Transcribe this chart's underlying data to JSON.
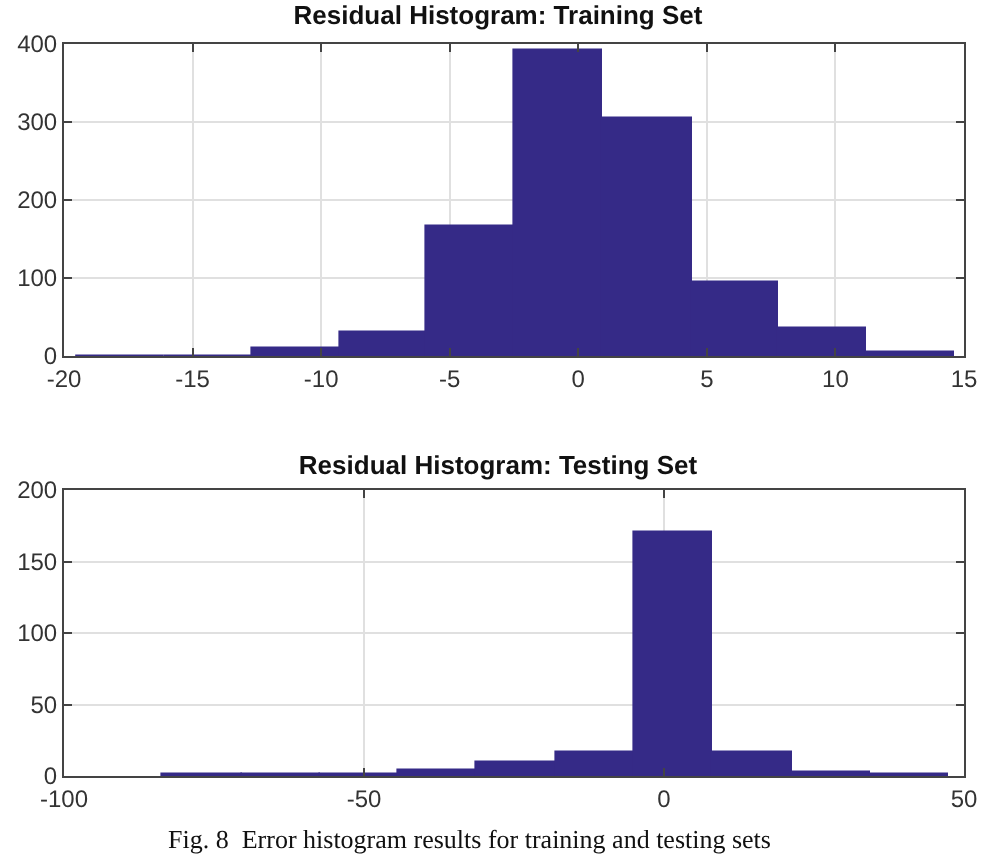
{
  "chart_data": [
    {
      "type": "histogram",
      "title": "Residual Histogram: Training Set",
      "bins": [
        -19.5,
        -16.1,
        -12.7,
        -9.3,
        -5.9,
        -2.5,
        0.9,
        4.4,
        7.8,
        11.2,
        14.6
      ],
      "values": [
        1,
        1,
        10,
        30,
        166,
        393,
        306,
        94,
        36,
        6
      ],
      "color": "#352a87",
      "xlim": [
        -20,
        15
      ],
      "xticks": [
        -20,
        -15,
        -10,
        -5,
        0,
        5,
        10,
        15
      ],
      "ylim": [
        0,
        400
      ],
      "yticks": [
        0,
        100,
        200,
        300,
        400
      ],
      "grid": true
    },
    {
      "type": "histogram",
      "title": "Residual Histogram: Testing Set",
      "bins": [
        -83.6,
        -70.5,
        -57.4,
        -44.3,
        -31.2,
        -18.1,
        -5.0,
        8.1,
        21.2,
        34.3,
        47.4
      ],
      "values": [
        1,
        1,
        1,
        4,
        10,
        17,
        170,
        17,
        3,
        2
      ],
      "color": "#352a87",
      "xlim": [
        -100,
        50
      ],
      "xticks": [
        -100,
        -50,
        0,
        50
      ],
      "ylim": [
        0,
        200
      ],
      "yticks": [
        0,
        50,
        100,
        150,
        200
      ],
      "grid": true,
      "annotations": [
        "Fig. 8  Error histogram results for training and testing sets"
      ]
    }
  ]
}
